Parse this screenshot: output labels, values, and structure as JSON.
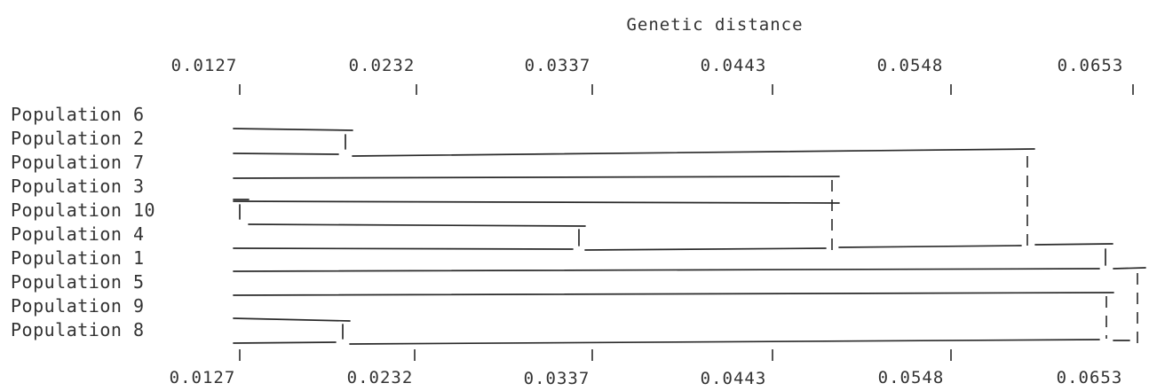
{
  "title": "Genetic distance",
  "axis_ticks": [
    "0.0127",
    "0.0232",
    "0.0337",
    "0.0443",
    "0.0548",
    "0.0653"
  ],
  "populations": [
    "Population 6",
    "Population 2",
    "Population 7",
    "Population 3",
    "Population 10",
    "Population 4",
    "Population 1",
    "Population 5",
    "Population 9",
    "Population 8"
  ],
  "merges": [
    {
      "members": [
        "Population 6",
        "Population 2"
      ],
      "distance": 0.0193
    },
    {
      "members": [
        "Population 9",
        "Population 8"
      ],
      "distance": 0.0193
    },
    {
      "members": [
        "Population 10",
        "Population 4"
      ],
      "distance": 0.0335
    },
    {
      "members": [
        "Population 3",
        "Population 10",
        "Population 4"
      ],
      "distance": 0.0482
    },
    {
      "members": [
        "Population 6",
        "Population 2",
        "Population 7",
        "Population 3",
        "Population 10",
        "Population 4"
      ],
      "distance": 0.0593
    },
    {
      "members": [
        "Population 6",
        "Population 2",
        "Population 7",
        "Population 3",
        "Population 10",
        "Population 4",
        "Population 1"
      ],
      "distance": 0.0643
    },
    {
      "members": [
        "Population 5",
        "Population 9",
        "Population 8"
      ],
      "distance": 0.0643
    },
    {
      "members": [
        "all"
      ],
      "distance": 0.0653
    }
  ]
}
